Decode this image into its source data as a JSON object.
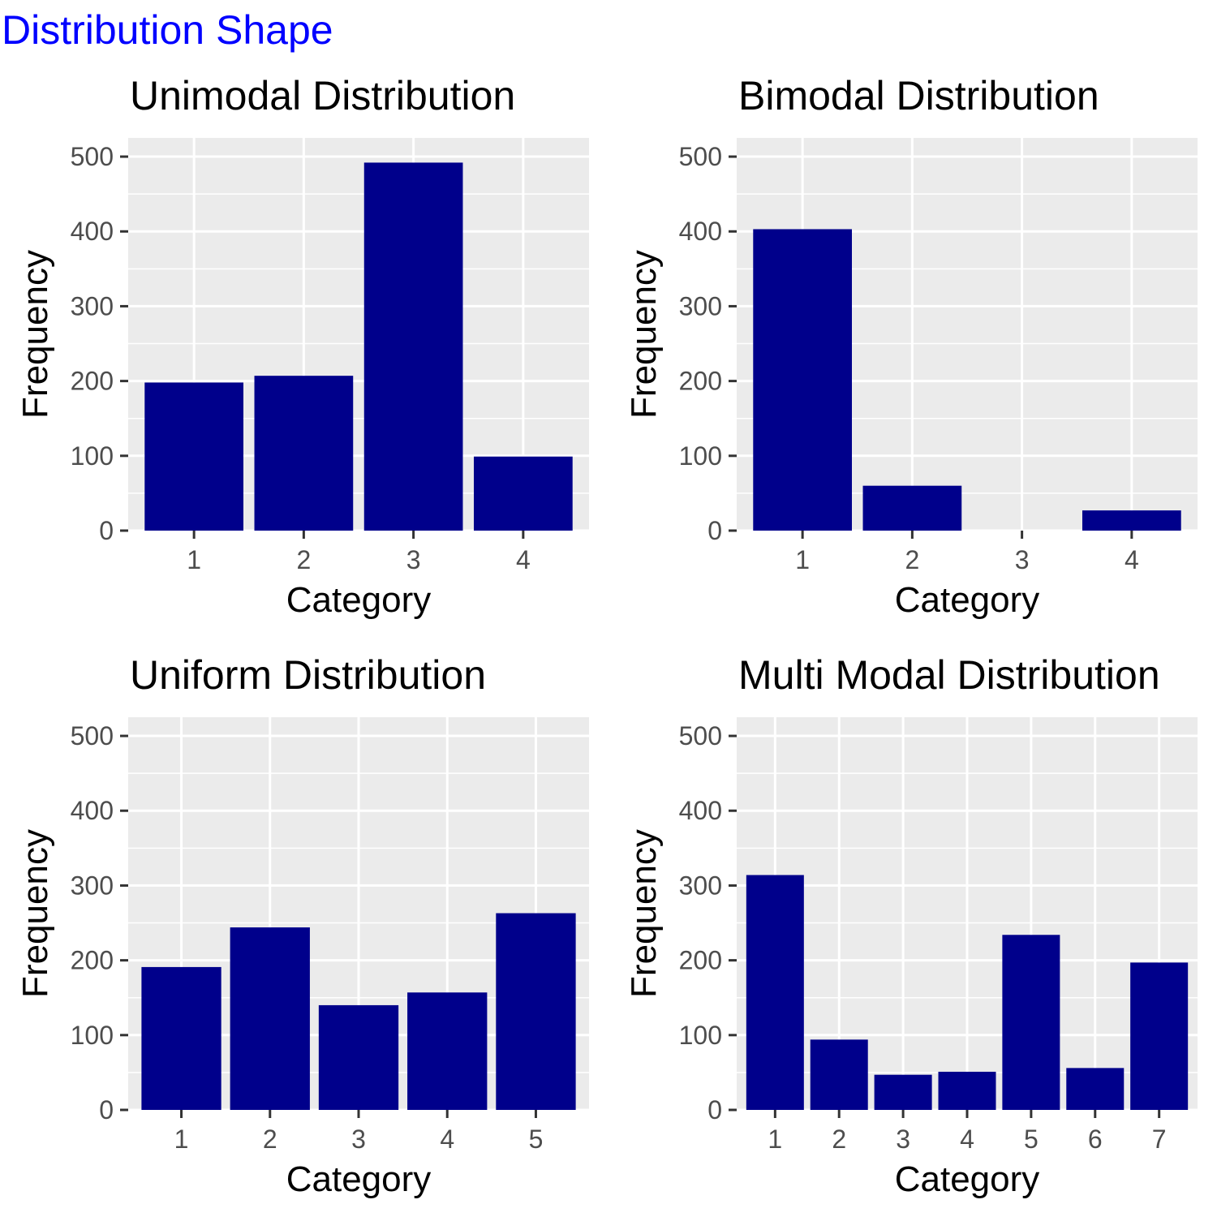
{
  "title": "Distribution Shape",
  "colors": {
    "title": "#0000ff",
    "bar": "#00008b",
    "panel_background": "#ebebeb",
    "grid": "#ffffff",
    "tick_text": "#4d4d4d",
    "tick_mark": "#333333"
  },
  "chart_data": [
    {
      "type": "bar",
      "title": "Unimodal Distribution",
      "xlabel": "Category",
      "ylabel": "Frequency",
      "categories": [
        "1",
        "2",
        "3",
        "4"
      ],
      "values": [
        198,
        207,
        492,
        99
      ],
      "ylim": [
        0,
        525
      ],
      "yticks": [
        0,
        100,
        200,
        300,
        400,
        500
      ],
      "grid": true
    },
    {
      "type": "bar",
      "title": "Bimodal Distribution",
      "xlabel": "Category",
      "ylabel": "Frequency",
      "categories": [
        "1",
        "2",
        "3",
        "4"
      ],
      "values": [
        403,
        60,
        0,
        27
      ],
      "ylim": [
        0,
        525
      ],
      "yticks": [
        0,
        100,
        200,
        300,
        400,
        500
      ],
      "grid": true
    },
    {
      "type": "bar",
      "title": "Uniform Distribution",
      "xlabel": "Category",
      "ylabel": "Frequency",
      "categories": [
        "1",
        "2",
        "3",
        "4",
        "5"
      ],
      "values": [
        191,
        244,
        140,
        157,
        263
      ],
      "ylim": [
        0,
        525
      ],
      "yticks": [
        0,
        100,
        200,
        300,
        400,
        500
      ],
      "grid": true
    },
    {
      "type": "bar",
      "title": "Multi Modal Distribution",
      "xlabel": "Category",
      "ylabel": "Frequency",
      "categories": [
        "1",
        "2",
        "3",
        "4",
        "5",
        "6",
        "7"
      ],
      "values": [
        314,
        94,
        47,
        51,
        234,
        56,
        197
      ],
      "ylim": [
        0,
        525
      ],
      "yticks": [
        0,
        100,
        200,
        300,
        400,
        500
      ],
      "grid": true
    }
  ]
}
